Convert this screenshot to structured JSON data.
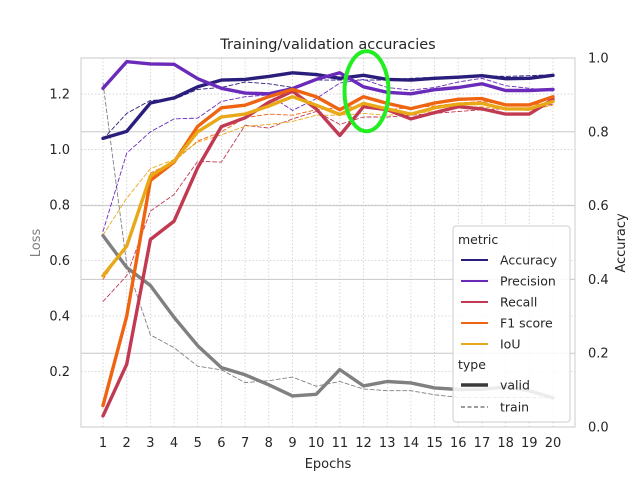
{
  "chart_data": {
    "type": "line",
    "title": "Training/validation accuracies",
    "xlabel": "Epochs",
    "ylabel_left": "Loss",
    "ylabel_right": "Accuracy",
    "x": [
      1,
      2,
      3,
      4,
      5,
      6,
      7,
      8,
      9,
      10,
      11,
      12,
      13,
      14,
      15,
      16,
      17,
      18,
      19,
      20
    ],
    "x_ticks": [
      "1",
      "2",
      "3",
      "4",
      "5",
      "6",
      "7",
      "8",
      "9",
      "10",
      "11",
      "12",
      "13",
      "14",
      "15",
      "16",
      "17",
      "18",
      "19",
      "20"
    ],
    "ylim_left": [
      0.0,
      1.33
    ],
    "yticks_left": [
      "0.2",
      "0.4",
      "0.6",
      "0.8",
      "1.0",
      "1.2"
    ],
    "ylim_right": [
      0.0,
      1.0
    ],
    "yticks_right": [
      "0.0",
      "0.2",
      "0.4",
      "0.6",
      "0.8",
      "1.0"
    ],
    "grid": true,
    "legend": {
      "placement": "lower-right",
      "metric_title": "metric",
      "type_title": "type",
      "metric_entries": [
        "Accuracy",
        "Precision",
        "Recall",
        "F1 score",
        "IoU"
      ],
      "type_entries": [
        "valid",
        "train"
      ]
    },
    "colors": {
      "Accuracy": "#2a1e7c",
      "Precision": "#6a2bbb",
      "Recall": "#c23a52",
      "F1 score": "#ef6410",
      "IoU": "#e8a817",
      "Loss": "#808080",
      "highlight": "#22ee22"
    },
    "highlight": {
      "x": 12,
      "y": 0.91,
      "note": "green ellipse marker"
    },
    "series": [
      {
        "name": "Loss",
        "type": "valid",
        "axis": "left",
        "values": [
          0.69,
          0.575,
          0.51,
          0.395,
          0.293,
          0.214,
          0.188,
          0.152,
          0.112,
          0.118,
          0.207,
          0.148,
          0.164,
          0.159,
          0.141,
          0.135,
          0.136,
          0.144,
          0.131,
          0.105
        ]
      },
      {
        "name": "Loss",
        "type": "train",
        "axis": "left",
        "values": [
          1.24,
          0.585,
          0.332,
          0.286,
          0.219,
          0.206,
          0.16,
          0.167,
          0.18,
          0.147,
          0.164,
          0.137,
          0.131,
          0.131,
          0.116,
          0.107,
          0.106,
          0.106,
          0.106,
          0.105
        ]
      },
      {
        "name": "Accuracy",
        "type": "valid",
        "axis": "right",
        "values": [
          0.782,
          0.801,
          0.878,
          0.892,
          0.922,
          0.94,
          0.942,
          0.95,
          0.96,
          0.955,
          0.945,
          0.953,
          0.942,
          0.94,
          0.945,
          0.948,
          0.952,
          0.944,
          0.945,
          0.953
        ]
      },
      {
        "name": "Accuracy",
        "type": "train",
        "axis": "right",
        "values": [
          0.78,
          0.85,
          0.885,
          0.888,
          0.915,
          0.92,
          0.935,
          0.93,
          0.92,
          0.94,
          0.94,
          0.94,
          0.94,
          0.945,
          0.948,
          0.95,
          0.952,
          0.95,
          0.952,
          0.955
        ]
      },
      {
        "name": "Precision",
        "type": "valid",
        "axis": "right",
        "values": [
          0.918,
          0.99,
          0.984,
          0.983,
          0.944,
          0.918,
          0.905,
          0.903,
          0.917,
          0.942,
          0.96,
          0.922,
          0.907,
          0.903,
          0.914,
          0.92,
          0.93,
          0.912,
          0.912,
          0.915
        ]
      },
      {
        "name": "Precision",
        "type": "train",
        "axis": "right",
        "values": [
          0.53,
          0.742,
          0.8,
          0.835,
          0.837,
          0.882,
          0.895,
          0.9,
          0.858,
          0.89,
          0.932,
          0.942,
          0.92,
          0.913,
          0.92,
          0.935,
          0.945,
          0.925,
          0.918,
          0.91
        ]
      },
      {
        "name": "Recall",
        "type": "valid",
        "axis": "right",
        "values": [
          0.03,
          0.17,
          0.508,
          0.558,
          0.703,
          0.814,
          0.838,
          0.88,
          0.91,
          0.862,
          0.79,
          0.868,
          0.86,
          0.835,
          0.852,
          0.868,
          0.862,
          0.848,
          0.848,
          0.888
        ]
      },
      {
        "name": "Recall",
        "type": "train",
        "axis": "right",
        "values": [
          0.34,
          0.41,
          0.585,
          0.63,
          0.72,
          0.718,
          0.818,
          0.81,
          0.835,
          0.855,
          0.82,
          0.84,
          0.84,
          0.845,
          0.85,
          0.855,
          0.86,
          0.862,
          0.86,
          0.875
        ]
      },
      {
        "name": "F1 score",
        "type": "valid",
        "axis": "right",
        "values": [
          0.058,
          0.3,
          0.668,
          0.718,
          0.815,
          0.865,
          0.872,
          0.895,
          0.915,
          0.895,
          0.86,
          0.895,
          0.877,
          0.863,
          0.878,
          0.888,
          0.89,
          0.873,
          0.873,
          0.895
        ]
      },
      {
        "name": "F1 score",
        "type": "train",
        "axis": "right",
        "values": [
          0.4,
          0.495,
          0.688,
          0.72,
          0.775,
          0.8,
          0.838,
          0.848,
          0.845,
          0.86,
          0.865,
          0.87,
          0.86,
          0.865,
          0.87,
          0.878,
          0.882,
          0.875,
          0.872,
          0.88
        ]
      },
      {
        "name": "IoU",
        "type": "valid",
        "axis": "right",
        "values": [
          0.41,
          0.49,
          0.68,
          0.72,
          0.8,
          0.84,
          0.848,
          0.87,
          0.895,
          0.872,
          0.847,
          0.877,
          0.862,
          0.848,
          0.865,
          0.875,
          0.877,
          0.862,
          0.862,
          0.882
        ]
      },
      {
        "name": "IoU",
        "type": "train",
        "axis": "right",
        "values": [
          0.52,
          0.62,
          0.7,
          0.725,
          0.772,
          0.792,
          0.815,
          0.82,
          0.828,
          0.845,
          0.845,
          0.85,
          0.845,
          0.85,
          0.855,
          0.865,
          0.868,
          0.86,
          0.858,
          0.872
        ]
      }
    ]
  }
}
